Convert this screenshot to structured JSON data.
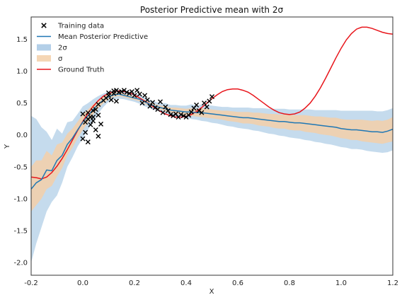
{
  "chart_data": {
    "type": "line",
    "title": "Posterior Predictive mean with 2σ",
    "xlabel": "X",
    "ylabel": "Y",
    "xlim": [
      -0.2,
      1.2
    ],
    "ylim": [
      -2.2,
      1.85
    ],
    "xticks": [
      "-0.2",
      "0.0",
      "0.2",
      "0.4",
      "0.6",
      "0.8",
      "1.0",
      "1.2"
    ],
    "xtick_values": [
      -0.2,
      0.0,
      0.2,
      0.4,
      0.6,
      0.8,
      1.0,
      1.2
    ],
    "yticks": [
      "-2.0",
      "-1.5",
      "-1.0",
      "-0.5",
      "0.0",
      "0.5",
      "1.0",
      "1.5"
    ],
    "ytick_values": [
      -2.0,
      -1.5,
      -1.0,
      -0.5,
      0.0,
      0.5,
      1.0,
      1.5
    ],
    "grid": false,
    "legend_position": "top-left",
    "legend": [
      {
        "label": "Training data",
        "kind": "marker",
        "color": "#000000"
      },
      {
        "label": "Mean Posterior Predictive",
        "kind": "line",
        "color": "#1f77b4"
      },
      {
        "label": "2σ",
        "kind": "patch",
        "color": "#1f77b4"
      },
      {
        "label": "σ",
        "kind": "patch",
        "color": "#ff7f0e"
      },
      {
        "label": "Ground Truth",
        "kind": "line",
        "color": "#e8151b"
      }
    ],
    "colors": {
      "mean": "#1f77b4",
      "band2": "#a6c7e4",
      "band1": "#f3cfa8",
      "truth": "#e8151b",
      "training": "#000000"
    },
    "series": [
      {
        "name": "Ground Truth",
        "x": [
          -0.2,
          -0.18,
          -0.16,
          -0.14,
          -0.12,
          -0.1,
          -0.08,
          -0.06,
          -0.04,
          -0.02,
          0.0,
          0.02,
          0.04,
          0.06,
          0.08,
          0.1,
          0.12,
          0.14,
          0.16,
          0.18,
          0.2,
          0.22,
          0.24,
          0.26,
          0.28,
          0.3,
          0.32,
          0.34,
          0.36,
          0.38,
          0.4,
          0.42,
          0.44,
          0.46,
          0.48,
          0.5,
          0.52,
          0.54,
          0.56,
          0.58,
          0.6,
          0.62,
          0.64,
          0.66,
          0.68,
          0.7,
          0.72,
          0.74,
          0.76,
          0.78,
          0.8,
          0.82,
          0.84,
          0.86,
          0.88,
          0.9,
          0.92,
          0.94,
          0.96,
          0.98,
          1.0,
          1.02,
          1.04,
          1.06,
          1.08,
          1.1,
          1.12,
          1.14,
          1.16,
          1.18,
          1.2
        ],
        "y": [
          -0.66,
          -0.67,
          -0.69,
          -0.66,
          -0.59,
          -0.49,
          -0.37,
          -0.23,
          -0.08,
          0.07,
          0.21,
          0.34,
          0.45,
          0.54,
          0.61,
          0.65,
          0.68,
          0.69,
          0.68,
          0.66,
          0.63,
          0.58,
          0.53,
          0.48,
          0.42,
          0.37,
          0.33,
          0.3,
          0.28,
          0.28,
          0.29,
          0.32,
          0.37,
          0.43,
          0.5,
          0.57,
          0.63,
          0.68,
          0.71,
          0.72,
          0.72,
          0.7,
          0.67,
          0.62,
          0.56,
          0.5,
          0.44,
          0.39,
          0.35,
          0.33,
          0.32,
          0.33,
          0.36,
          0.42,
          0.5,
          0.61,
          0.74,
          0.89,
          1.05,
          1.21,
          1.36,
          1.49,
          1.59,
          1.66,
          1.69,
          1.69,
          1.67,
          1.64,
          1.61,
          1.59,
          1.58
        ]
      },
      {
        "name": "Mean Posterior Predictive",
        "x": [
          -0.2,
          -0.18,
          -0.16,
          -0.14,
          -0.12,
          -0.1,
          -0.08,
          -0.06,
          -0.04,
          -0.02,
          0.0,
          0.02,
          0.04,
          0.06,
          0.08,
          0.1,
          0.12,
          0.14,
          0.16,
          0.18,
          0.2,
          0.22,
          0.24,
          0.26,
          0.28,
          0.3,
          0.32,
          0.34,
          0.36,
          0.38,
          0.4,
          0.42,
          0.44,
          0.46,
          0.48,
          0.5,
          0.52,
          0.54,
          0.56,
          0.58,
          0.6,
          0.62,
          0.64,
          0.66,
          0.68,
          0.7,
          0.72,
          0.74,
          0.76,
          0.78,
          0.8,
          0.82,
          0.84,
          0.86,
          0.88,
          0.9,
          0.92,
          0.94,
          0.96,
          0.98,
          1.0,
          1.02,
          1.04,
          1.06,
          1.08,
          1.1,
          1.12,
          1.14,
          1.16,
          1.18,
          1.2
        ],
        "y": [
          -0.85,
          -0.75,
          -0.7,
          -0.55,
          -0.56,
          -0.4,
          -0.32,
          -0.15,
          -0.05,
          0.08,
          0.2,
          0.3,
          0.4,
          0.48,
          0.55,
          0.6,
          0.63,
          0.64,
          0.62,
          0.6,
          0.58,
          0.56,
          0.52,
          0.48,
          0.45,
          0.43,
          0.41,
          0.39,
          0.38,
          0.37,
          0.36,
          0.36,
          0.35,
          0.35,
          0.34,
          0.33,
          0.32,
          0.31,
          0.3,
          0.29,
          0.28,
          0.27,
          0.27,
          0.26,
          0.25,
          0.24,
          0.23,
          0.22,
          0.21,
          0.21,
          0.2,
          0.19,
          0.19,
          0.18,
          0.17,
          0.16,
          0.15,
          0.14,
          0.13,
          0.12,
          0.1,
          0.09,
          0.08,
          0.08,
          0.07,
          0.06,
          0.05,
          0.05,
          0.04,
          0.06,
          0.09
        ]
      },
      {
        "name": "σ",
        "lower": [
          -1.2,
          -1.1,
          -1.0,
          -0.85,
          -0.8,
          -0.65,
          -0.52,
          -0.32,
          -0.2,
          -0.05,
          0.08,
          0.2,
          0.32,
          0.42,
          0.5,
          0.56,
          0.6,
          0.61,
          0.59,
          0.57,
          0.55,
          0.53,
          0.49,
          0.45,
          0.42,
          0.4,
          0.37,
          0.35,
          0.33,
          0.32,
          0.31,
          0.3,
          0.29,
          0.28,
          0.27,
          0.26,
          0.25,
          0.24,
          0.22,
          0.21,
          0.2,
          0.18,
          0.18,
          0.17,
          0.15,
          0.14,
          0.13,
          0.11,
          0.1,
          0.1,
          0.08,
          0.07,
          0.07,
          0.05,
          0.04,
          0.03,
          0.01,
          0.0,
          -0.01,
          -0.03,
          -0.05,
          -0.06,
          -0.08,
          -0.08,
          -0.1,
          -0.11,
          -0.12,
          -0.13,
          -0.14,
          -0.12,
          -0.1
        ],
        "upper": [
          -0.5,
          -0.4,
          -0.4,
          -0.25,
          -0.32,
          -0.15,
          -0.12,
          0.02,
          0.1,
          0.21,
          0.32,
          0.4,
          0.48,
          0.54,
          0.6,
          0.64,
          0.66,
          0.67,
          0.65,
          0.63,
          0.61,
          0.59,
          0.55,
          0.51,
          0.48,
          0.46,
          0.45,
          0.43,
          0.43,
          0.42,
          0.41,
          0.42,
          0.41,
          0.42,
          0.41,
          0.4,
          0.39,
          0.38,
          0.38,
          0.37,
          0.36,
          0.36,
          0.36,
          0.35,
          0.35,
          0.34,
          0.33,
          0.33,
          0.32,
          0.32,
          0.32,
          0.31,
          0.31,
          0.31,
          0.3,
          0.29,
          0.29,
          0.28,
          0.27,
          0.27,
          0.25,
          0.24,
          0.24,
          0.24,
          0.24,
          0.23,
          0.22,
          0.23,
          0.22,
          0.24,
          0.28
        ]
      },
      {
        "name": "2σ",
        "lower": [
          -2.0,
          -1.7,
          -1.45,
          -1.2,
          -1.05,
          -0.95,
          -0.75,
          -0.5,
          -0.35,
          -0.18,
          -0.05,
          0.08,
          0.22,
          0.34,
          0.44,
          0.52,
          0.56,
          0.57,
          0.56,
          0.54,
          0.52,
          0.49,
          0.45,
          0.42,
          0.39,
          0.37,
          0.34,
          0.32,
          0.29,
          0.28,
          0.27,
          0.25,
          0.24,
          0.22,
          0.21,
          0.19,
          0.18,
          0.16,
          0.14,
          0.13,
          0.11,
          0.1,
          0.09,
          0.07,
          0.06,
          0.04,
          0.02,
          0.01,
          -0.01,
          -0.02,
          -0.04,
          -0.05,
          -0.06,
          -0.08,
          -0.09,
          -0.11,
          -0.12,
          -0.14,
          -0.15,
          -0.17,
          -0.19,
          -0.2,
          -0.22,
          -0.22,
          -0.23,
          -0.25,
          -0.26,
          -0.27,
          -0.28,
          -0.27,
          -0.24
        ],
        "upper": [
          0.3,
          0.25,
          0.12,
          0.05,
          -0.08,
          0.1,
          0.02,
          0.2,
          0.22,
          0.33,
          0.45,
          0.5,
          0.56,
          0.61,
          0.65,
          0.68,
          0.69,
          0.7,
          0.68,
          0.67,
          0.65,
          0.63,
          0.59,
          0.55,
          0.52,
          0.5,
          0.5,
          0.47,
          0.47,
          0.46,
          0.46,
          0.48,
          0.46,
          0.48,
          0.47,
          0.46,
          0.45,
          0.44,
          0.44,
          0.43,
          0.43,
          0.43,
          0.43,
          0.42,
          0.42,
          0.42,
          0.41,
          0.41,
          0.41,
          0.41,
          0.4,
          0.4,
          0.4,
          0.4,
          0.4,
          0.39,
          0.39,
          0.39,
          0.39,
          0.39,
          0.38,
          0.38,
          0.38,
          0.38,
          0.38,
          0.38,
          0.38,
          0.37,
          0.37,
          0.39,
          0.42
        ]
      },
      {
        "name": "Training data",
        "x": [
          0.0,
          0.01,
          0.01,
          0.02,
          0.02,
          0.03,
          0.03,
          0.04,
          0.04,
          0.05,
          0.05,
          0.06,
          0.06,
          0.07,
          0.08,
          0.09,
          0.1,
          0.1,
          0.11,
          0.12,
          0.12,
          0.13,
          0.13,
          0.14,
          0.15,
          0.16,
          0.17,
          0.18,
          0.19,
          0.2,
          0.21,
          0.22,
          0.23,
          0.24,
          0.25,
          0.26,
          0.27,
          0.28,
          0.29,
          0.3,
          0.31,
          0.32,
          0.33,
          0.34,
          0.35,
          0.36,
          0.37,
          0.38,
          0.39,
          0.4,
          0.41,
          0.42,
          0.43,
          0.44,
          0.45,
          0.46,
          0.47,
          0.48,
          0.49,
          0.5,
          0.0,
          0.02,
          0.04,
          0.06
        ],
        "y": [
          0.33,
          0.2,
          0.04,
          0.35,
          -0.11,
          0.28,
          0.16,
          0.22,
          0.38,
          0.08,
          0.4,
          -0.02,
          0.48,
          0.17,
          0.54,
          0.58,
          0.62,
          0.66,
          0.55,
          0.65,
          0.69,
          0.53,
          0.7,
          0.67,
          0.68,
          0.7,
          0.67,
          0.65,
          0.68,
          0.62,
          0.7,
          0.64,
          0.5,
          0.62,
          0.55,
          0.45,
          0.51,
          0.43,
          0.4,
          0.52,
          0.35,
          0.44,
          0.38,
          0.32,
          0.3,
          0.33,
          0.28,
          0.32,
          0.3,
          0.28,
          0.31,
          0.36,
          0.42,
          0.47,
          0.38,
          0.35,
          0.5,
          0.44,
          0.53,
          0.6,
          -0.06,
          0.25,
          0.28,
          0.31
        ]
      }
    ]
  }
}
